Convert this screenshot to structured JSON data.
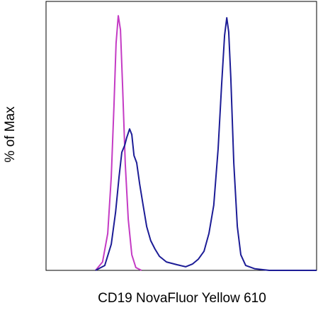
{
  "chart_data": {
    "type": "line",
    "x_label": "CD19 NovaFluor Yellow 610",
    "y_label": "% of Max",
    "xlim": [
      0,
      100
    ],
    "ylim": [
      0,
      100
    ],
    "series": [
      {
        "color": "#c43bc4",
        "x": [
          18.3,
          20.9,
          22.8,
          24.1,
          25.1,
          25.9,
          26.7,
          27.5,
          28.3,
          29.3,
          30.4,
          31.7,
          33.2,
          35.3
        ],
        "values": [
          0,
          3.3,
          14.4,
          36.5,
          64.1,
          88.7,
          99.4,
          93.9,
          71.8,
          41.4,
          19.9,
          6.1,
          1.1,
          0
        ]
      },
      {
        "color": "#1c1c96",
        "x": [
          18.3,
          21.7,
          24.1,
          25.7,
          27.0,
          28.0,
          29.1,
          29.8,
          30.9,
          31.7,
          32.5,
          33.5,
          34.6,
          35.9,
          37.2,
          38.7,
          40.3,
          41.9,
          44.5,
          48.4,
          51.6,
          54.2,
          56.3,
          58.4,
          60.2,
          62.0,
          63.6,
          64.9,
          66.0,
          66.8,
          67.5,
          68.3,
          69.4,
          70.7,
          72.0,
          73.8,
          77.2,
          82.5,
          100
        ],
        "values": [
          0,
          1.9,
          10.2,
          22.7,
          36.5,
          46.1,
          48.9,
          51.7,
          55.2,
          53.0,
          44.8,
          42.0,
          33.7,
          25.4,
          17.1,
          11.6,
          8.3,
          5.5,
          3.3,
          2.2,
          1.4,
          2.5,
          4.4,
          7.5,
          14.4,
          25.4,
          47.5,
          72.4,
          91.7,
          98.6,
          93.1,
          75.1,
          41.9,
          17.1,
          6.1,
          1.9,
          0.6,
          0,
          0
        ]
      }
    ]
  }
}
